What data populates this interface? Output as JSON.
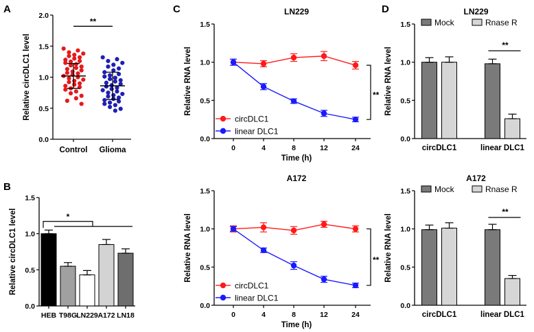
{
  "panel_labels": [
    "A",
    "B",
    "C",
    "D"
  ],
  "chart_data": [
    {
      "id": "A",
      "type": "scatter",
      "title": "",
      "xlabel": "",
      "ylabel": "Relative circDLC1 level",
      "categories": [
        "Control",
        "Glioma"
      ],
      "ylim": [
        0,
        2.0
      ],
      "yticks": [
        0.0,
        0.5,
        1.0,
        1.5,
        2.0
      ],
      "colors": [
        "#e41a1c",
        "#1f1fb4"
      ],
      "series": [
        {
          "name": "Control",
          "mean": 1.02,
          "sd": 0.2,
          "values": [
            1.46,
            1.43,
            1.4,
            1.38,
            1.36,
            1.34,
            1.32,
            1.3,
            1.28,
            1.26,
            1.25,
            1.23,
            1.21,
            1.19,
            1.17,
            1.15,
            1.13,
            1.11,
            1.09,
            1.07,
            1.06,
            1.04,
            1.02,
            1.0,
            0.98,
            0.96,
            0.94,
            0.92,
            0.9,
            0.88,
            0.86,
            0.84,
            0.82,
            0.8,
            0.77,
            0.74,
            0.7,
            0.66,
            0.62,
            0.57
          ]
        },
        {
          "name": "Glioma",
          "mean": 0.86,
          "sd": 0.22,
          "values": [
            1.32,
            1.29,
            1.26,
            1.23,
            1.2,
            1.17,
            1.14,
            1.11,
            1.08,
            1.05,
            1.03,
            1.01,
            0.99,
            0.97,
            0.95,
            0.93,
            0.91,
            0.89,
            0.87,
            0.85,
            0.83,
            0.81,
            0.79,
            0.77,
            0.75,
            0.73,
            0.71,
            0.69,
            0.67,
            0.65,
            0.63,
            0.61,
            0.59,
            0.57,
            0.55,
            0.52,
            0.49,
            0.46
          ]
        }
      ],
      "significance": [
        {
          "label": "**",
          "y": 1.82
        }
      ]
    },
    {
      "id": "B",
      "type": "bar",
      "title": "",
      "xlabel": "",
      "ylabel": "Relative circDLC1 level",
      "categories": [
        "HEB",
        "T98G",
        "LN229",
        "A172",
        "LN18"
      ],
      "values": [
        1.0,
        0.55,
        0.43,
        0.85,
        0.73
      ],
      "errors": [
        0.05,
        0.05,
        0.06,
        0.07,
        0.06
      ],
      "colors": [
        "#000000",
        "#a0a0a0",
        "#ffffff",
        "#d3d3d3",
        "#6e6e6e"
      ],
      "ylim": [
        0,
        1.5
      ],
      "yticks": [
        0.0,
        0.5,
        1.0,
        1.5
      ],
      "significance": [
        {
          "label": "*",
          "y": 1.17
        }
      ]
    },
    {
      "id": "C1",
      "type": "line",
      "title": "LN229",
      "xlabel": "Time (h)",
      "ylabel": "Relative RNA level",
      "x": [
        0,
        4,
        8,
        12,
        24
      ],
      "ylim": [
        0,
        1.5
      ],
      "yticks": [
        0.0,
        0.5,
        1.0,
        1.5
      ],
      "series": [
        {
          "name": "circDLC1",
          "color": "#ff1a1a",
          "values": [
            1.0,
            0.98,
            1.06,
            1.08,
            0.96
          ],
          "errors": [
            0.04,
            0.04,
            0.05,
            0.06,
            0.05
          ]
        },
        {
          "name": "linear DLC1",
          "color": "#1a1aff",
          "values": [
            1.0,
            0.68,
            0.49,
            0.33,
            0.25
          ],
          "errors": [
            0.04,
            0.04,
            0.03,
            0.04,
            0.03
          ]
        }
      ],
      "significance": [
        {
          "label": "**"
        }
      ]
    },
    {
      "id": "C2",
      "type": "line",
      "title": "A172",
      "xlabel": "Time (h)",
      "ylabel": "Relative RNA level",
      "x": [
        0,
        4,
        8,
        12,
        24
      ],
      "ylim": [
        0,
        1.5
      ],
      "yticks": [
        0.0,
        0.5,
        1.0,
        1.5
      ],
      "series": [
        {
          "name": "circDLC1",
          "color": "#ff1a1a",
          "values": [
            1.0,
            1.02,
            0.98,
            1.06,
            1.0
          ],
          "errors": [
            0.04,
            0.06,
            0.05,
            0.04,
            0.04
          ]
        },
        {
          "name": "linear DLC1",
          "color": "#1a1aff",
          "values": [
            1.0,
            0.72,
            0.52,
            0.34,
            0.26
          ],
          "errors": [
            0.03,
            0.03,
            0.05,
            0.04,
            0.03
          ]
        }
      ],
      "significance": [
        {
          "label": "**"
        }
      ]
    },
    {
      "id": "D1",
      "type": "bar",
      "title": "LN229",
      "xlabel": "",
      "ylabel": "Relative RNA level",
      "categories": [
        "circDLC1",
        "linear DLC1"
      ],
      "ylim": [
        0,
        1.5
      ],
      "yticks": [
        0.0,
        0.5,
        1.0,
        1.5
      ],
      "series": [
        {
          "name": "Mock",
          "color": "#7a7a7a",
          "values": [
            1.0,
            0.98
          ],
          "errors": [
            0.06,
            0.06
          ]
        },
        {
          "name": "Rnase R",
          "color": "#d6d6d6",
          "values": [
            1.0,
            0.26
          ],
          "errors": [
            0.07,
            0.06
          ]
        }
      ],
      "significance": [
        {
          "label": "**",
          "y": 1.15
        }
      ]
    },
    {
      "id": "D2",
      "type": "bar",
      "title": "A172",
      "xlabel": "",
      "ylabel": "Relative RNA level",
      "categories": [
        "circDLC1",
        "linear DLC1"
      ],
      "ylim": [
        0,
        1.5
      ],
      "yticks": [
        0.0,
        0.5,
        1.0,
        1.5
      ],
      "series": [
        {
          "name": "Mock",
          "color": "#7a7a7a",
          "values": [
            0.99,
            0.99
          ],
          "errors": [
            0.06,
            0.07
          ]
        },
        {
          "name": "Rnase R",
          "color": "#d6d6d6",
          "values": [
            1.01,
            0.35
          ],
          "errors": [
            0.07,
            0.04
          ]
        }
      ],
      "significance": [
        {
          "label": "**",
          "y": 1.15
        }
      ]
    }
  ]
}
